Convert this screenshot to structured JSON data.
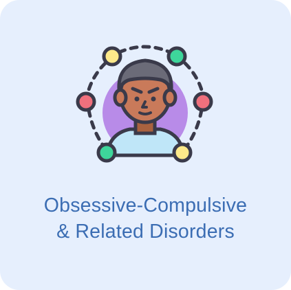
{
  "card": {
    "title_line1": "Obsessive-Compulsive",
    "title_line2": "& Related Disorders",
    "icon": "person-with-thought-cycle-icon",
    "colors": {
      "background": "#e6effd",
      "title": "#3b6db3",
      "outline": "#3a3a4a",
      "halo": "#b88be8",
      "skin": "#c97a5a",
      "hair": "#6b6b78",
      "shirt": "#bfe6f8",
      "node_yellow": "#fde98a",
      "node_green": "#3ed69b",
      "node_red": "#f0707d"
    }
  }
}
